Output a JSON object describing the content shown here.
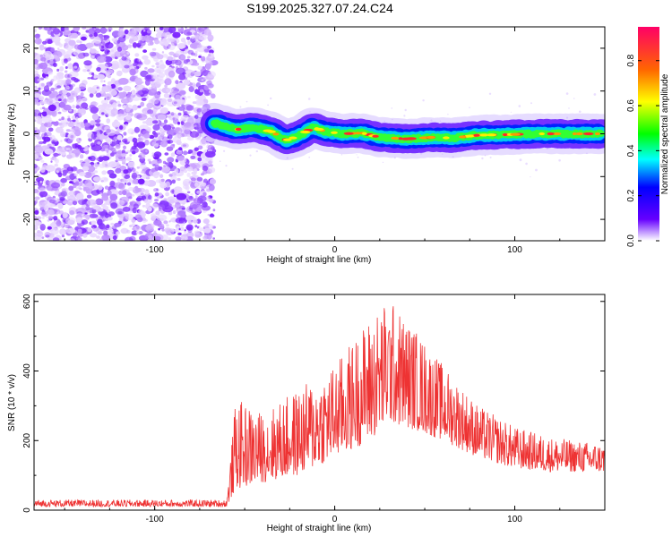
{
  "title": "S199.2025.327.07.24.C24",
  "chart_data": [
    {
      "type": "heatmap",
      "name": "spectrogram",
      "xlabel": "Height of straight line (km)",
      "ylabel": "Frequency (Hz)",
      "xlim": [
        -167,
        150
      ],
      "ylim": [
        -25,
        25
      ],
      "x_ticks": [
        -100,
        0,
        100
      ],
      "y_ticks": [
        -20,
        -10,
        0,
        10,
        20
      ],
      "noise_region_x": [
        -167,
        -67
      ],
      "ridge_start_x": -67,
      "ridge_trace": [
        {
          "x": -67,
          "y": 2.5
        },
        {
          "x": -55,
          "y": 1.0
        },
        {
          "x": -45,
          "y": 1.5
        },
        {
          "x": -35,
          "y": 0.5
        },
        {
          "x": -27,
          "y": -1.5
        },
        {
          "x": -20,
          "y": -0.5
        },
        {
          "x": -12,
          "y": 1.5
        },
        {
          "x": -5,
          "y": 0.5
        },
        {
          "x": 5,
          "y": 0.0
        },
        {
          "x": 15,
          "y": 0.2
        },
        {
          "x": 25,
          "y": -0.8
        },
        {
          "x": 40,
          "y": -1.2
        },
        {
          "x": 55,
          "y": -0.8
        },
        {
          "x": 65,
          "y": -1.0
        },
        {
          "x": 80,
          "y": -0.3
        },
        {
          "x": 95,
          "y": -0.2
        },
        {
          "x": 110,
          "y": 0.0
        },
        {
          "x": 125,
          "y": 0.0
        },
        {
          "x": 140,
          "y": 0.0
        },
        {
          "x": 148,
          "y": 0.0
        }
      ],
      "colorbar": {
        "label": "Normalized spectral amplitude",
        "ticks": [
          "0.0",
          "0.2",
          "0.4",
          "0.6",
          "0.8"
        ],
        "range": [
          0,
          0.95
        ]
      }
    },
    {
      "type": "line",
      "name": "snr",
      "xlabel": "Height of straight line (km)",
      "ylabel": "SNR (10 * v/v)",
      "xlim": [
        -167,
        150
      ],
      "ylim": [
        0,
        620
      ],
      "x_ticks": [
        -100,
        0,
        100
      ],
      "y_ticks": [
        0,
        200,
        400,
        600
      ],
      "series_color": "#ee3333",
      "envelope": [
        {
          "x": -167,
          "base": 10,
          "peak": 30
        },
        {
          "x": -60,
          "base": 10,
          "peak": 30
        },
        {
          "x": -55,
          "base": 60,
          "peak": 320
        },
        {
          "x": -40,
          "base": 80,
          "peak": 280
        },
        {
          "x": -20,
          "base": 100,
          "peak": 350
        },
        {
          "x": 0,
          "base": 150,
          "peak": 420
        },
        {
          "x": 20,
          "base": 200,
          "peak": 560
        },
        {
          "x": 30,
          "base": 250,
          "peak": 610
        },
        {
          "x": 45,
          "base": 230,
          "peak": 520
        },
        {
          "x": 60,
          "base": 200,
          "peak": 420
        },
        {
          "x": 80,
          "base": 150,
          "peak": 300
        },
        {
          "x": 100,
          "base": 120,
          "peak": 240
        },
        {
          "x": 120,
          "base": 110,
          "peak": 210
        },
        {
          "x": 150,
          "base": 110,
          "peak": 190
        }
      ]
    }
  ]
}
